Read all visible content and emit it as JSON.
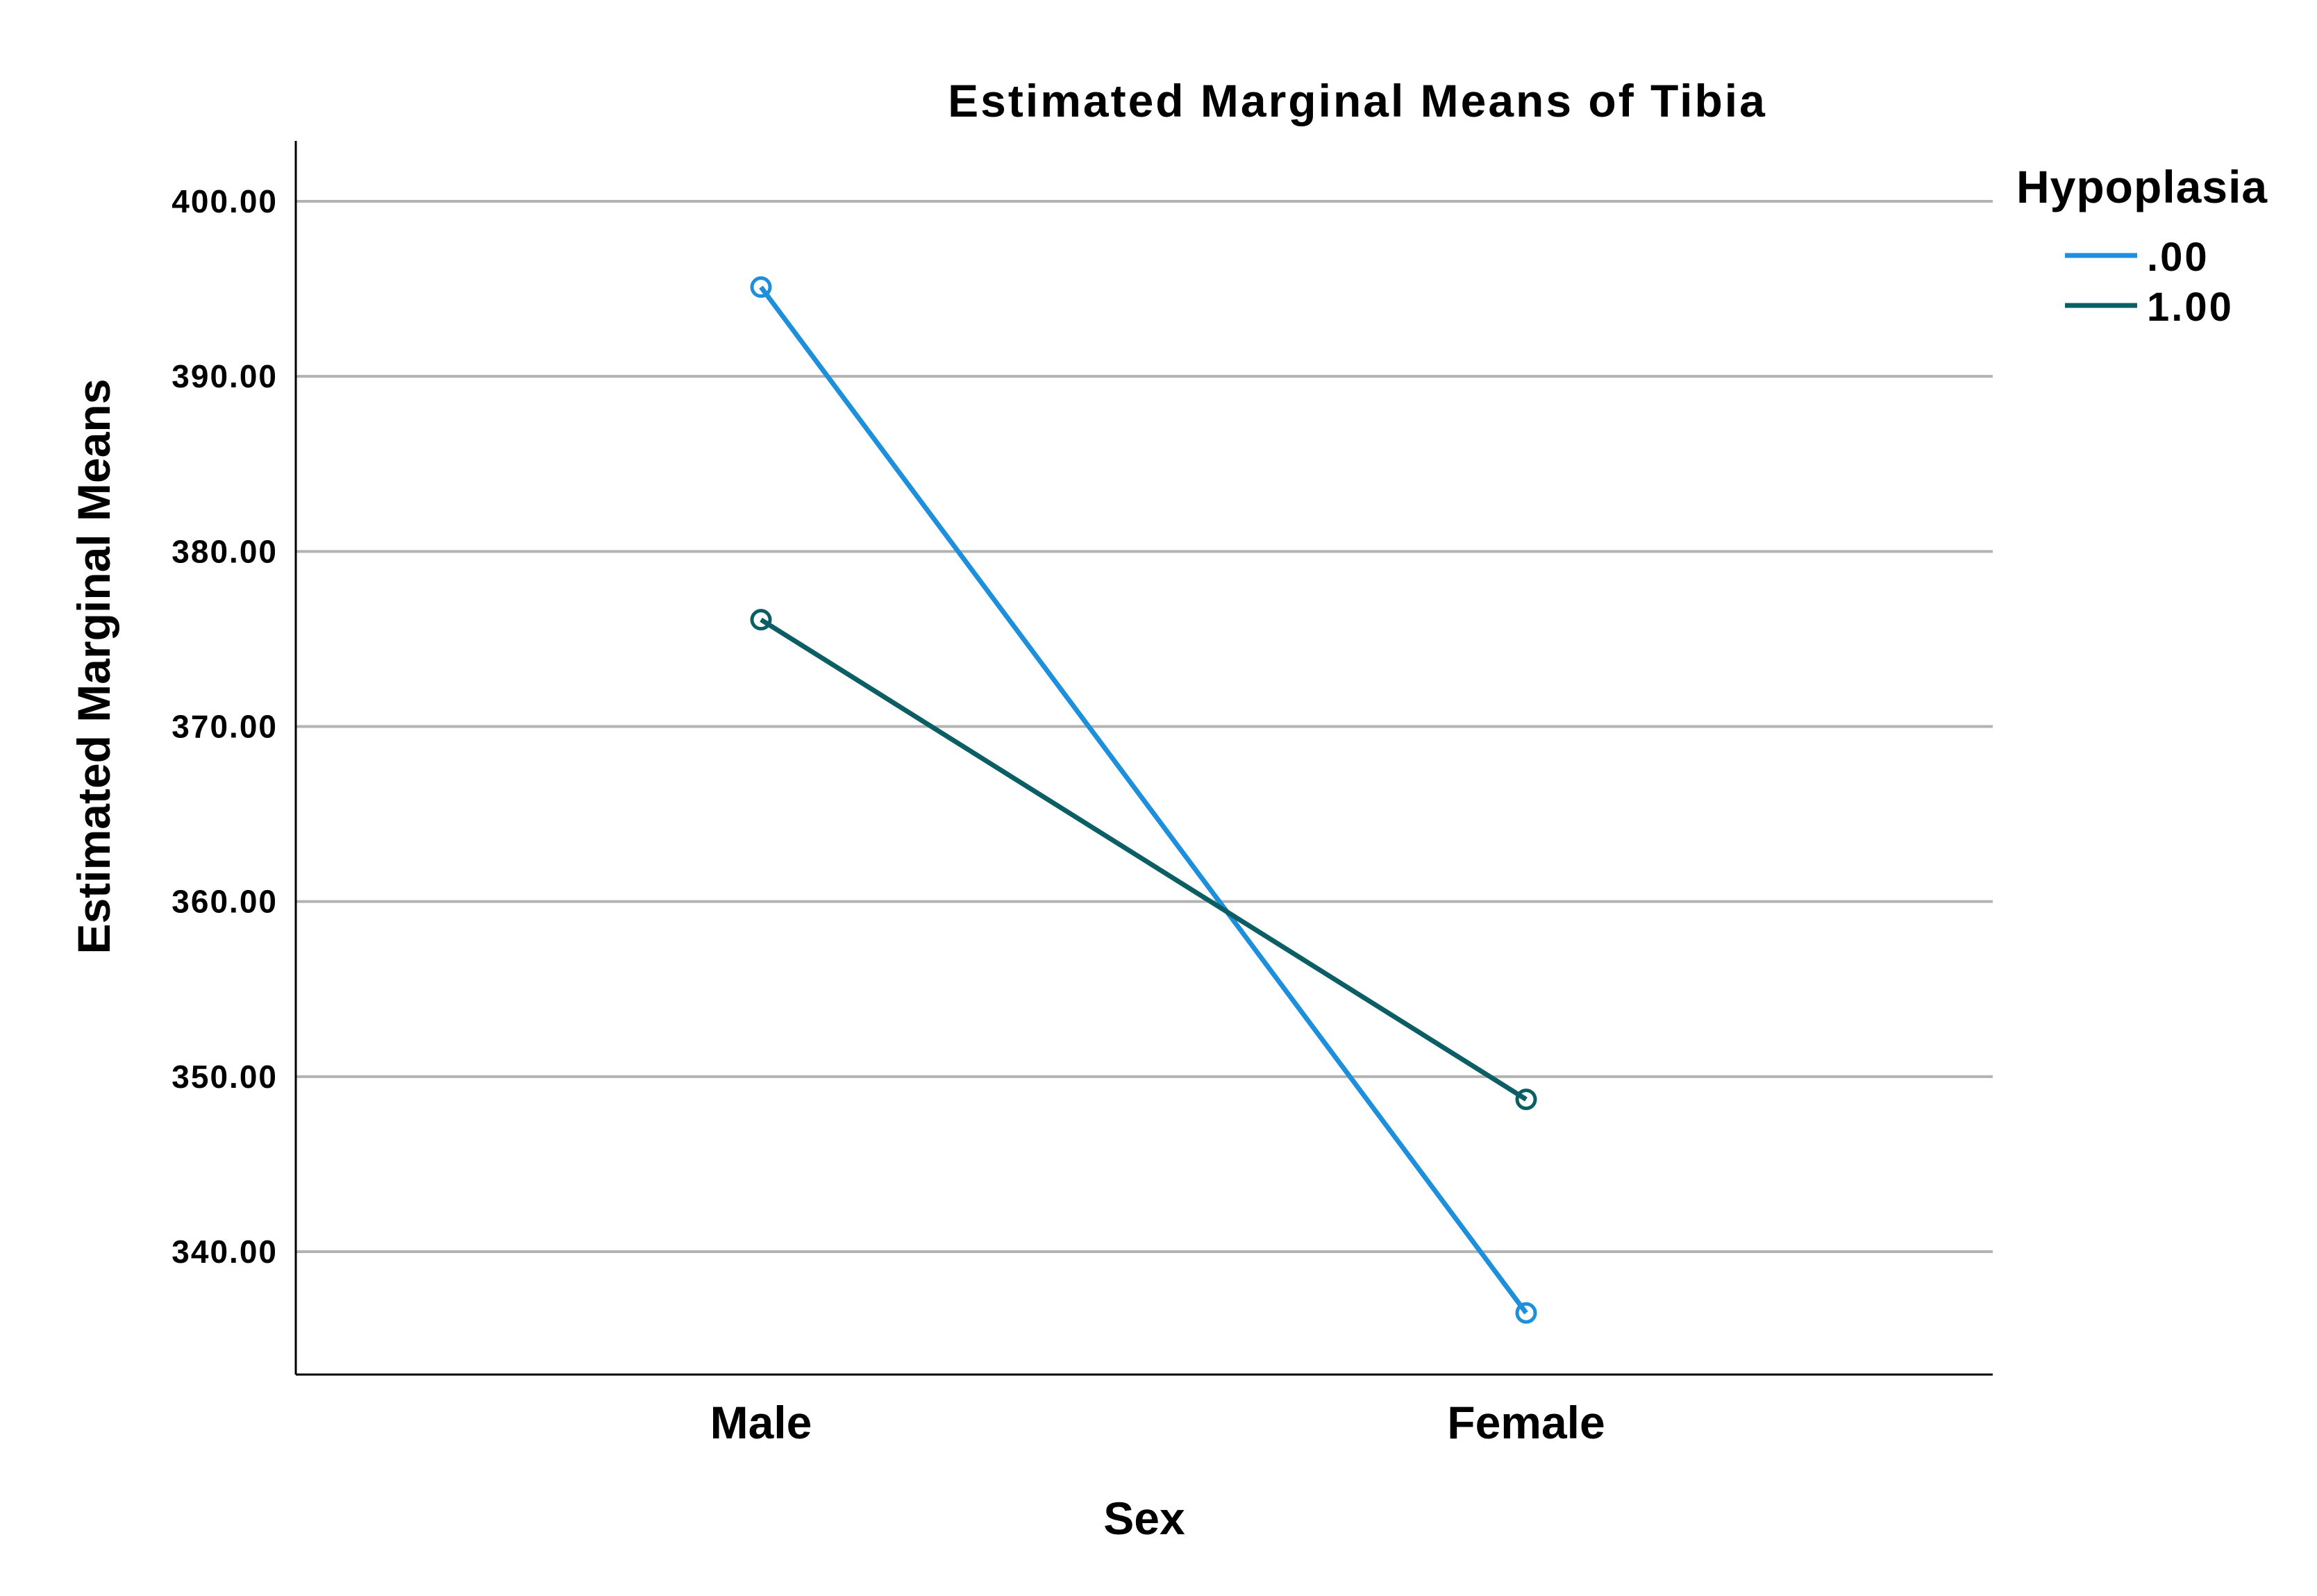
{
  "chart_data": {
    "type": "line",
    "title": "Estimated Marginal Means of Tibia",
    "xlabel": "Sex",
    "ylabel": "Estimated Marginal Means",
    "categories": [
      "Male",
      "Female"
    ],
    "ylim": [
      333,
      403.5
    ],
    "yticks": [
      340,
      350,
      360,
      370,
      380,
      390,
      400
    ],
    "ytick_labels": [
      "340.00",
      "350.00",
      "360.00",
      "370.00",
      "380.00",
      "390.00",
      "400.00"
    ],
    "grid": "horizontal",
    "legend_title": "Hypoplasia",
    "legend_position": "top-right",
    "series": [
      {
        "name": ".00",
        "color": "#1E8FDB",
        "values": [
          395.1,
          336.5
        ]
      },
      {
        "name": "1.00",
        "color": "#0B5E63",
        "values": [
          376.1,
          348.7
        ]
      }
    ]
  }
}
